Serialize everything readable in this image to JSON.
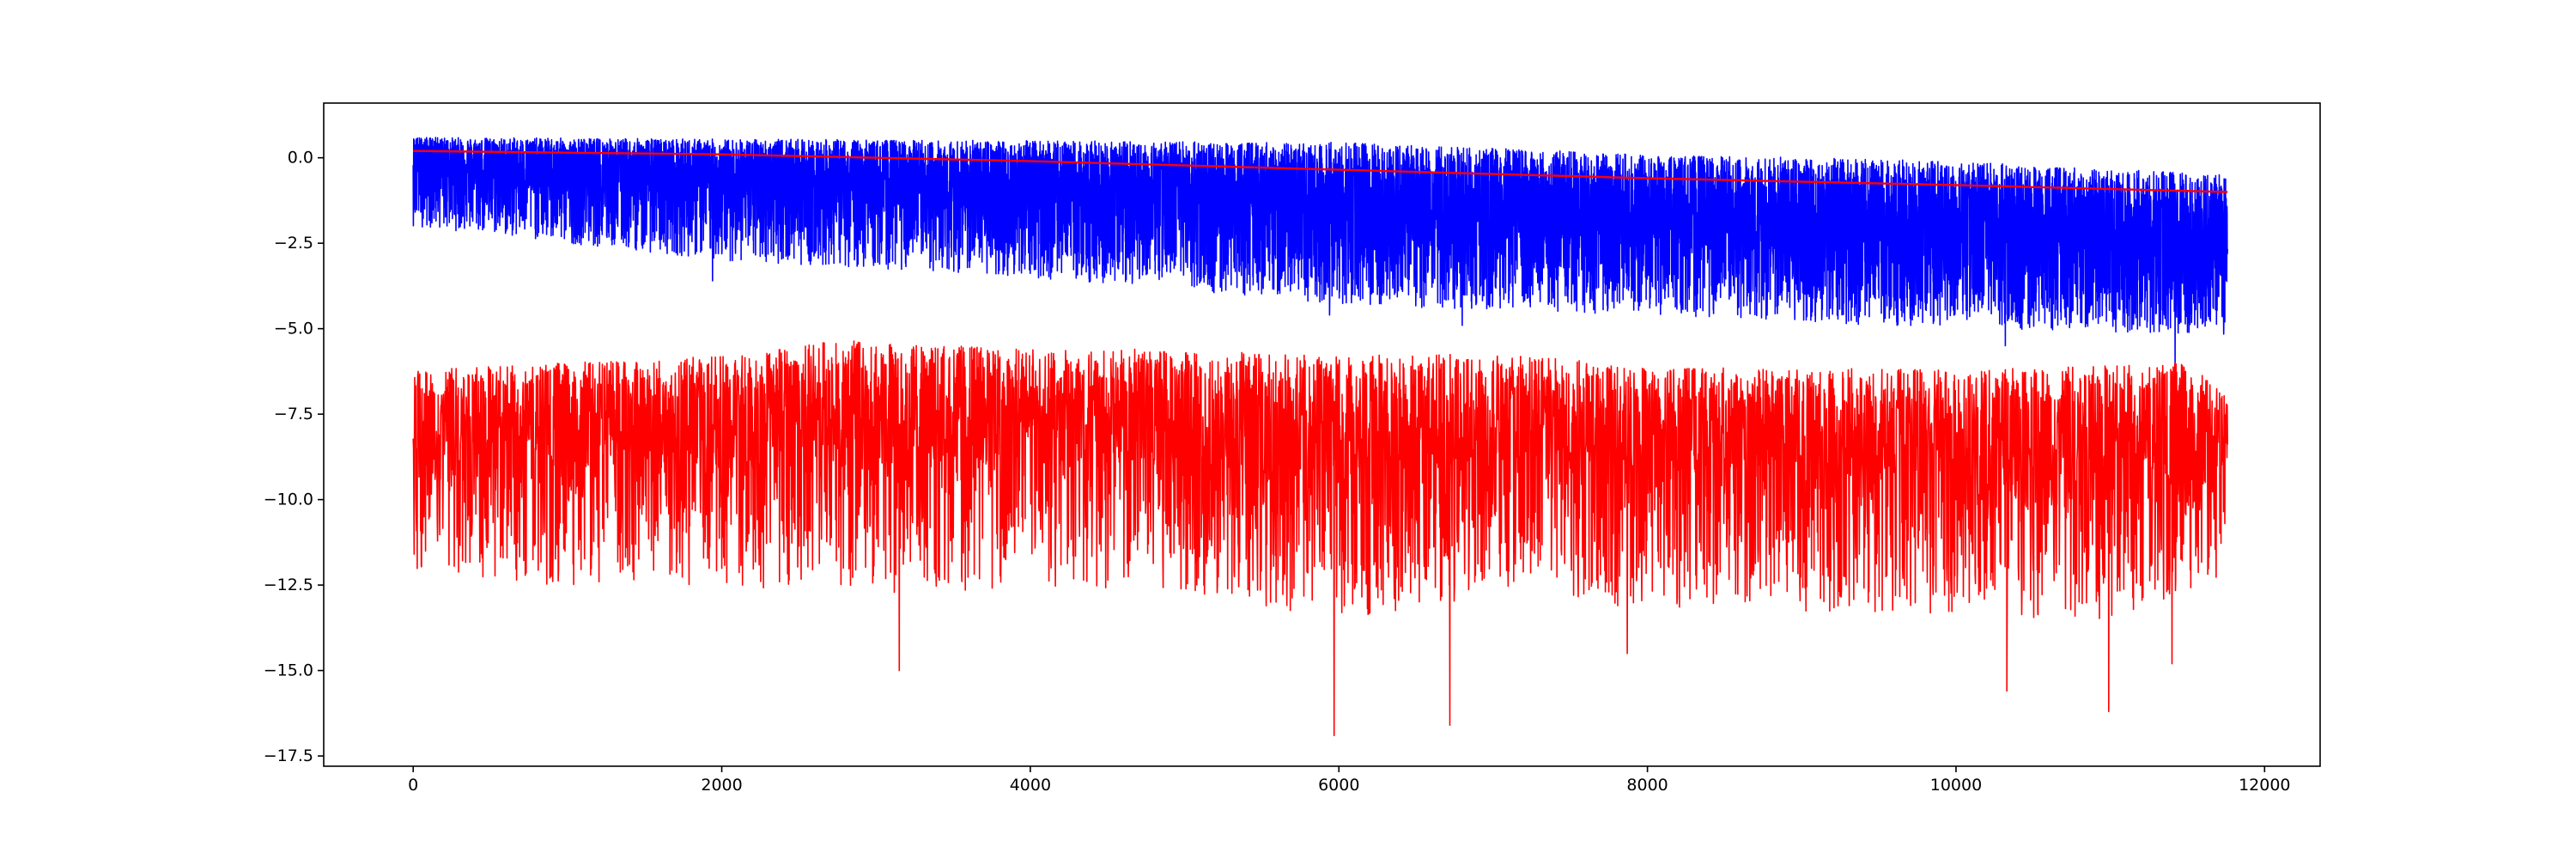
{
  "chart_data": {
    "type": "line",
    "title": "",
    "xlabel": "",
    "ylabel": "",
    "xlim": [
      -580,
      12360
    ],
    "ylim": [
      -17.8,
      1.6
    ],
    "grid": false,
    "legend": "none",
    "x_ticks": [
      0,
      2000,
      4000,
      6000,
      8000,
      10000,
      12000
    ],
    "x_tick_labels": [
      "0",
      "2000",
      "4000",
      "6000",
      "8000",
      "10000",
      "12000"
    ],
    "y_ticks": [
      0.0,
      -2.5,
      -5.0,
      -7.5,
      -10.0,
      -12.5,
      -15.0,
      -17.5
    ],
    "y_tick_labels": [
      "0.0",
      "−2.5",
      "−5.0",
      "−7.5",
      "−10.0",
      "−12.5",
      "−15.0",
      "−17.5"
    ],
    "series": [
      {
        "color": "#0000ff",
        "x_range": [
          0,
          11760
        ],
        "samples": 11760,
        "points": [
          [
            0,
            0.1
          ],
          [
            500,
            -0.4
          ],
          [
            1000,
            -0.5
          ],
          [
            1500,
            -0.6
          ],
          [
            2000,
            -0.7
          ],
          [
            2500,
            -0.8
          ],
          [
            3000,
            -0.9
          ],
          [
            3500,
            -1.0
          ],
          [
            4000,
            -1.1
          ],
          [
            4500,
            -1.2
          ],
          [
            5000,
            -1.3
          ],
          [
            5500,
            -1.4
          ],
          [
            6000,
            -1.6
          ],
          [
            6500,
            -1.7
          ],
          [
            7000,
            -1.8
          ],
          [
            7500,
            -1.9
          ],
          [
            8000,
            -2.0
          ],
          [
            8500,
            -2.1
          ],
          [
            9000,
            -2.2
          ],
          [
            9500,
            -2.3
          ],
          [
            10000,
            -2.4
          ],
          [
            10500,
            -2.5
          ],
          [
            11000,
            -2.6
          ],
          [
            11760,
            -2.8
          ]
        ],
        "upper_envelope": [
          [
            0,
            0.6
          ],
          [
            2000,
            0.55
          ],
          [
            4000,
            0.5
          ],
          [
            6000,
            0.45
          ],
          [
            8000,
            0.1
          ],
          [
            10000,
            -0.1
          ],
          [
            11760,
            -0.5
          ]
        ],
        "lower_envelope": [
          [
            0,
            -2.0
          ],
          [
            2000,
            -3.0
          ],
          [
            4000,
            -3.5
          ],
          [
            6000,
            -4.3
          ],
          [
            8000,
            -4.6
          ],
          [
            10000,
            -5.0
          ],
          [
            11760,
            -5.2
          ]
        ],
        "extremes": [
          [
            1940,
            -3.6
          ],
          [
            5940,
            -4.6
          ],
          [
            6800,
            -4.9
          ],
          [
            10320,
            -5.5
          ],
          [
            11420,
            -6.0
          ]
        ]
      },
      {
        "color": "#ff0000",
        "x_range": [
          0,
          11760
        ],
        "points": [
          [
            0,
            0.2
          ],
          [
            2000,
            0.1
          ],
          [
            4000,
            -0.1
          ],
          [
            6000,
            -0.35
          ],
          [
            8000,
            -0.6
          ],
          [
            10000,
            -0.8
          ],
          [
            11760,
            -1.0
          ]
        ]
      },
      {
        "color": "#ff0000",
        "x_range": [
          0,
          11760
        ],
        "samples": 5880,
        "points": [
          [
            0,
            -8.2
          ],
          [
            1000,
            -8.1
          ],
          [
            2000,
            -8.2
          ],
          [
            2700,
            -7.6
          ],
          [
            3000,
            -8.4
          ],
          [
            4000,
            -8.0
          ],
          [
            4800,
            -7.5
          ],
          [
            5000,
            -8.7
          ],
          [
            6000,
            -8.8
          ],
          [
            7000,
            -8.5
          ],
          [
            8000,
            -8.6
          ],
          [
            9000,
            -8.7
          ],
          [
            10000,
            -8.7
          ],
          [
            11000,
            -8.6
          ],
          [
            11760,
            -8.8
          ]
        ],
        "upper_envelope": [
          [
            0,
            -6.2
          ],
          [
            2000,
            -5.8
          ],
          [
            2800,
            -5.3
          ],
          [
            4000,
            -5.6
          ],
          [
            4800,
            -5.6
          ],
          [
            6000,
            -5.8
          ],
          [
            7000,
            -5.7
          ],
          [
            8000,
            -6.1
          ],
          [
            10000,
            -6.2
          ],
          [
            11500,
            -6.0
          ],
          [
            11760,
            -7.0
          ]
        ],
        "lower_envelope": [
          [
            0,
            -12.0
          ],
          [
            1000,
            -12.6
          ],
          [
            2000,
            -12.5
          ],
          [
            3000,
            -12.8
          ],
          [
            4000,
            -12.6
          ],
          [
            5000,
            -12.7
          ],
          [
            6000,
            -13.5
          ],
          [
            7000,
            -13.0
          ],
          [
            8000,
            -13.2
          ],
          [
            9000,
            -13.3
          ],
          [
            10000,
            -13.4
          ],
          [
            11000,
            -13.5
          ],
          [
            11760,
            -12.3
          ]
        ],
        "extremes": [
          [
            3150,
            -15.0
          ],
          [
            5970,
            -16.9
          ],
          [
            6720,
            -16.6
          ],
          [
            7870,
            -14.5
          ],
          [
            10330,
            -15.6
          ],
          [
            10990,
            -16.2
          ],
          [
            11400,
            -14.8
          ]
        ]
      }
    ]
  }
}
